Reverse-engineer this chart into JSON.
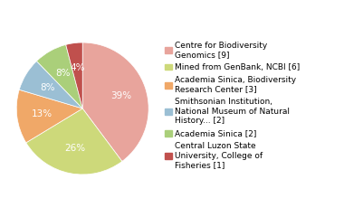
{
  "labels": [
    "Centre for Biodiversity\nGenomics [9]",
    "Mined from GenBank, NCBI [6]",
    "Academia Sinica, Biodiversity\nResearch Center [3]",
    "Smithsonian Institution,\nNational Museum of Natural\nHistory... [2]",
    "Academia Sinica [2]",
    "Central Luzon State\nUniversity, College of\nFisheries [1]"
  ],
  "values": [
    39,
    26,
    13,
    8,
    8,
    4
  ],
  "colors": [
    "#e8a49c",
    "#cdd97a",
    "#f0a868",
    "#9bbfd4",
    "#aacf7a",
    "#c0504d"
  ],
  "pct_labels": [
    "39%",
    "26%",
    "13%",
    "8%",
    "8%",
    "4%"
  ],
  "text_color": "#ffffff",
  "fontsize_pct": 7.5,
  "fontsize_legend": 6.5,
  "startangle": 90
}
